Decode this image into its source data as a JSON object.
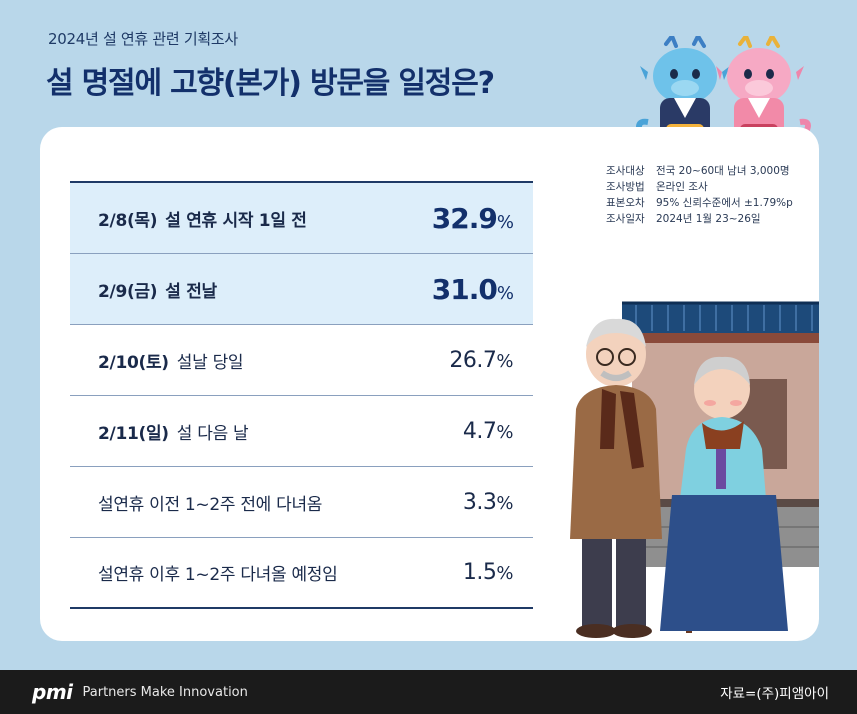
{
  "header": {
    "subtitle": "2024년 설 연휴 관련 기획조사",
    "title": "설 명절에 고향(본가) 방문을 일정은?"
  },
  "survey_info": [
    {
      "key": "조사대상",
      "value": "전국 20~60대 남녀 3,000명"
    },
    {
      "key": "조사방법",
      "value": "온라인 조사"
    },
    {
      "key": "표본오차",
      "value": "95% 신뢰수준에서 ±1.79%p"
    },
    {
      "key": "조사일자",
      "value": "2024년 1월 23~26일"
    }
  ],
  "chart_data": {
    "type": "table",
    "unit": "%",
    "rows": [
      {
        "date": "2/8(목)",
        "desc": "설 연휴 시작 1일 전",
        "value": "32.9",
        "highlight": true
      },
      {
        "date": "2/9(금)",
        "desc": "설 전날",
        "value": "31.0",
        "highlight": true
      },
      {
        "date": "2/10(토)",
        "desc": "설날 당일",
        "value": "26.7",
        "highlight": false
      },
      {
        "date": "2/11(일)",
        "desc": "설 다음 날",
        "value": "4.7",
        "highlight": false
      },
      {
        "date": "",
        "desc": "설연휴 이전 1~2주 전에 다녀옴",
        "value": "3.3",
        "highlight": false
      },
      {
        "date": "",
        "desc": "설연휴 이후 1~2주 다녀올 예정임",
        "value": "1.5",
        "highlight": false
      }
    ]
  },
  "footer": {
    "logo": "pmi",
    "tagline": "Partners Make Innovation",
    "source": "자료=(주)피앰아이"
  },
  "colors": {
    "background": "#b9d7ea",
    "highlight_row": "#ddeefa",
    "title_navy": "#13306b"
  },
  "illustrations": [
    "blue-dragon-mascot",
    "pink-dragon-mascot",
    "grandparents-hanok"
  ]
}
